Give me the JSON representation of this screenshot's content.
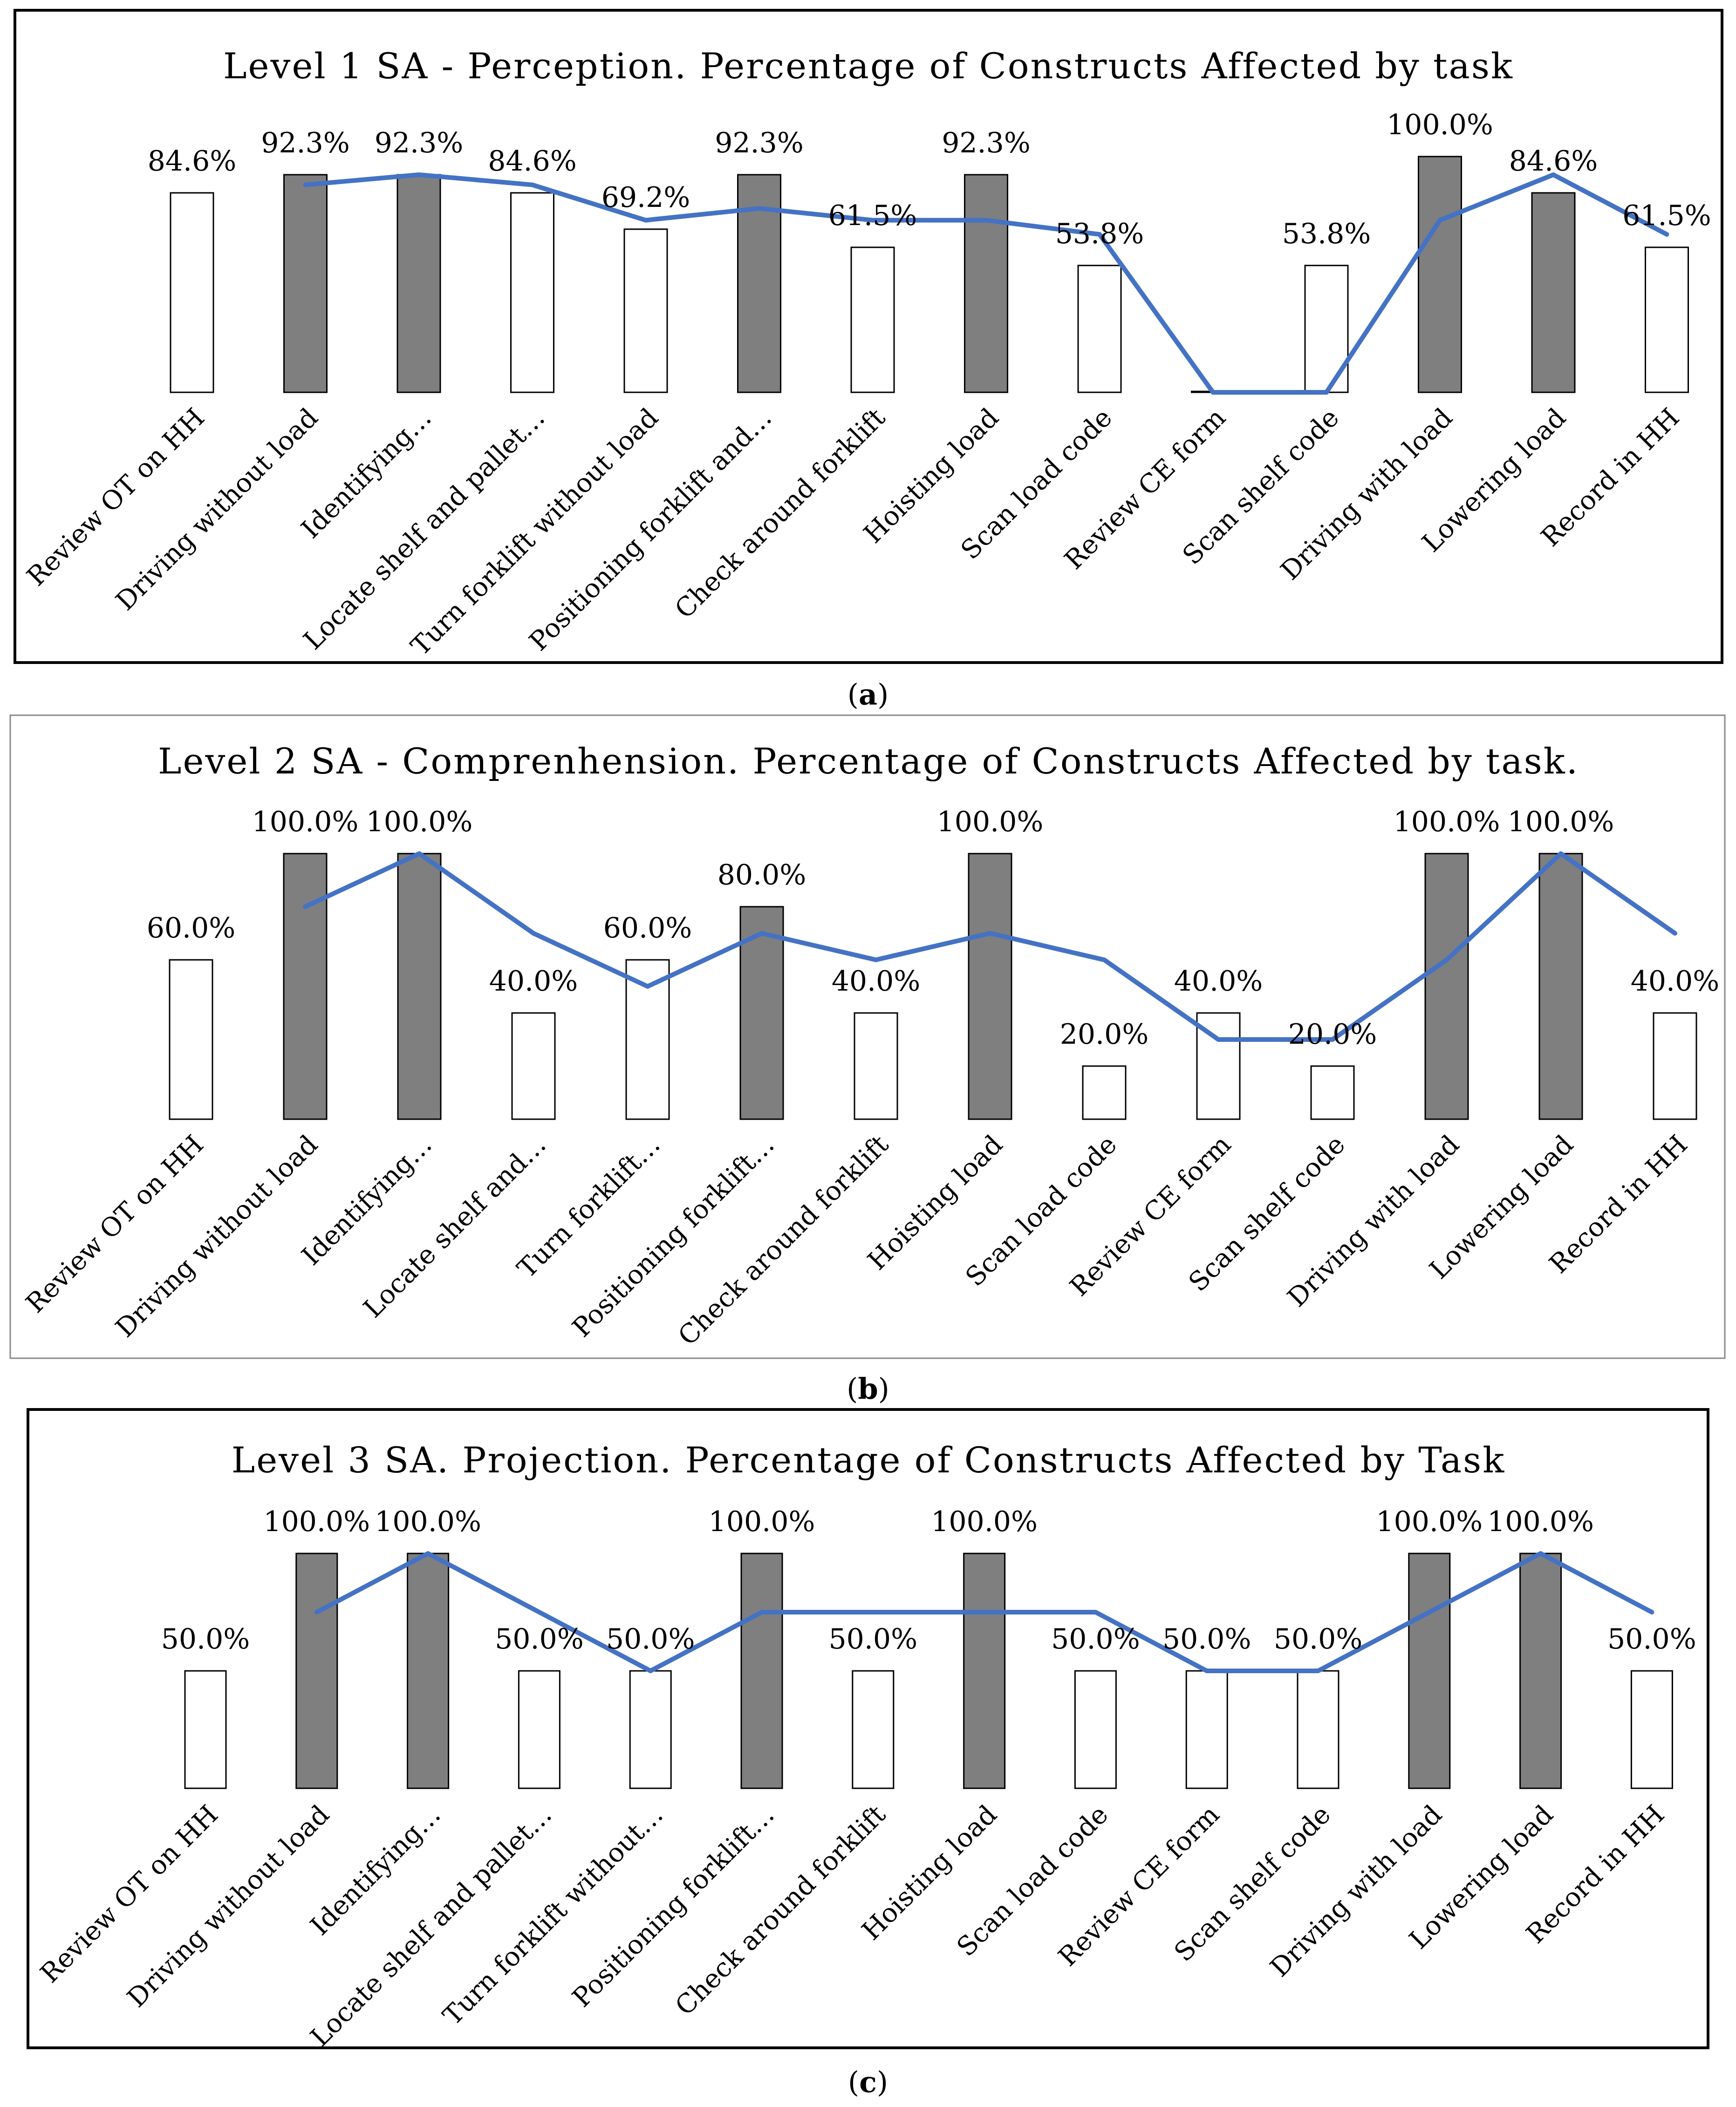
{
  "colors": {
    "filled_bar": "#7f7f7f",
    "empty_bar": "#ffffff",
    "bar_stroke": "#000000",
    "line": "#4472c4"
  },
  "chart_data": [
    {
      "type": "bar",
      "panel": "(a)",
      "panel_letter": "a",
      "title": "Level 1 SA - Perception. Percentage of Constructs Affected by task",
      "categories": [
        "Review OT on HH",
        "Driving without load",
        "Identifying…",
        "Locate shelf and pallet…",
        "Turn forklift without load",
        "Positioning forklift and…",
        "Check around forklift",
        "Hoisting load",
        "Scan load code",
        "Review CE form",
        "Scan shelf code",
        "Driving with load",
        "Lowering load",
        "Record in HH"
      ],
      "values": [
        84.6,
        92.3,
        92.3,
        84.6,
        69.2,
        92.3,
        61.5,
        92.3,
        53.8,
        0.0,
        53.8,
        100.0,
        84.6,
        61.5
      ],
      "data_labels": [
        "84.6%",
        "92.3%",
        "92.3%",
        "84.6%",
        "69.2%",
        "92.3%",
        "61.5%",
        "92.3%",
        "53.8%",
        "",
        "53.8%",
        "100.0%",
        "84.6%",
        "61.5%"
      ],
      "filled": [
        false,
        true,
        true,
        false,
        false,
        true,
        false,
        true,
        false,
        false,
        false,
        true,
        true,
        false
      ],
      "trend_line": [
        null,
        88.0,
        92.3,
        88.0,
        73.0,
        78.0,
        73.0,
        73.0,
        67.0,
        0.0,
        0.0,
        73.0,
        92.3,
        67.0
      ],
      "xlabel": "",
      "ylabel": "",
      "ylim": [
        0,
        100
      ]
    },
    {
      "type": "bar",
      "panel": "(b)",
      "panel_letter": "b",
      "title": "Level 2 SA - Comprenhension. Percentage of Constructs Affected by task.",
      "categories": [
        "Review OT on HH",
        "Driving without load",
        "Identifying…",
        "Locate shelf and…",
        "Turn forklift…",
        "Positioning forklift…",
        "Check around forklift",
        "Hoisting load",
        "Scan load code",
        "Review CE form",
        "Scan shelf code",
        "Driving with load",
        "Lowering load",
        "Record in HH"
      ],
      "values": [
        60.0,
        100.0,
        100.0,
        40.0,
        60.0,
        80.0,
        40.0,
        100.0,
        20.0,
        40.0,
        20.0,
        100.0,
        100.0,
        40.0
      ],
      "data_labels": [
        "60.0%",
        "100.0%",
        "100.0%",
        "40.0%",
        "60.0%",
        "80.0%",
        "40.0%",
        "100.0%",
        "20.0%",
        "40.0%",
        "20.0%",
        "100.0%",
        "100.0%",
        "40.0%"
      ],
      "filled": [
        false,
        true,
        true,
        false,
        false,
        true,
        false,
        true,
        false,
        false,
        false,
        true,
        true,
        false
      ],
      "trend_line": [
        null,
        80.0,
        100.0,
        70.0,
        50.0,
        70.0,
        60.0,
        70.0,
        60.0,
        30.0,
        30.0,
        60.0,
        100.0,
        70.0
      ],
      "xlabel": "",
      "ylabel": "",
      "ylim": [
        0,
        100
      ]
    },
    {
      "type": "bar",
      "panel": "(c)",
      "panel_letter": "c",
      "title": "Level 3 SA. Projection. Percentage of Constructs Affected by Task",
      "categories": [
        "Review OT on HH",
        "Driving without load",
        "Identifying…",
        "Locate shelf and pallet…",
        "Turn forklift without…",
        "Positioning forklift…",
        "Check around forklift",
        "Hoisting load",
        "Scan load code",
        "Review CE form",
        "Scan shelf code",
        "Driving with load",
        "Lowering load",
        "Record in HH"
      ],
      "values": [
        50.0,
        100.0,
        100.0,
        50.0,
        50.0,
        100.0,
        50.0,
        100.0,
        50.0,
        50.0,
        50.0,
        100.0,
        100.0,
        50.0
      ],
      "data_labels": [
        "50.0%",
        "100.0%",
        "100.0%",
        "50.0%",
        "50.0%",
        "100.0%",
        "50.0%",
        "100.0%",
        "50.0%",
        "50.0%",
        "50.0%",
        "100.0%",
        "100.0%",
        "50.0%"
      ],
      "filled": [
        false,
        true,
        true,
        false,
        false,
        true,
        false,
        true,
        false,
        false,
        false,
        true,
        true,
        false
      ],
      "trend_line": [
        null,
        75.0,
        100.0,
        75.0,
        50.0,
        75.0,
        75.0,
        75.0,
        75.0,
        50.0,
        50.0,
        75.0,
        100.0,
        75.0
      ],
      "xlabel": "",
      "ylabel": "",
      "ylim": [
        0,
        100
      ]
    }
  ]
}
